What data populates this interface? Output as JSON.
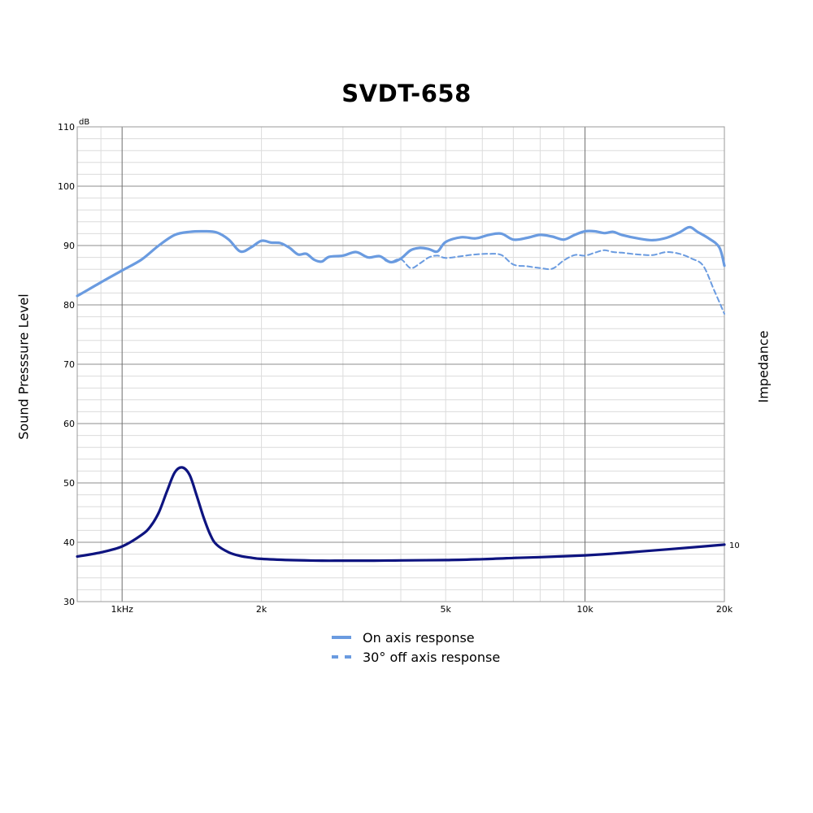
{
  "chart_data": {
    "type": "line",
    "title": "SVDT-658",
    "ylabel": "Sound Presssure Level",
    "ylabel_right": "Impedance",
    "yunit": "dB",
    "xscale": "log",
    "xlim": [
      800,
      20000
    ],
    "ylim": [
      30,
      110
    ],
    "yticks": [
      30,
      40,
      50,
      60,
      70,
      80,
      90,
      100,
      110
    ],
    "xticks": [
      {
        "value": 1000,
        "label": "1kHz"
      },
      {
        "value": 2000,
        "label": "2k"
      },
      {
        "value": 5000,
        "label": "5k"
      },
      {
        "value": 10000,
        "label": "10k"
      },
      {
        "value": 20000,
        "label": "20k"
      }
    ],
    "right_tick": {
      "y": 39.6,
      "label": "10"
    },
    "grid": true,
    "legend_position": "bottom",
    "series": [
      {
        "name": "On axis response",
        "style": "solid",
        "color": "#6a9be0",
        "x": [
          800,
          900,
          1000,
          1100,
          1200,
          1300,
          1400,
          1500,
          1600,
          1700,
          1800,
          1900,
          2000,
          2100,
          2200,
          2300,
          2400,
          2500,
          2600,
          2700,
          2800,
          3000,
          3200,
          3400,
          3600,
          3800,
          4000,
          4200,
          4400,
          4600,
          4800,
          5000,
          5400,
          5800,
          6200,
          6600,
          7000,
          7500,
          8000,
          8500,
          9000,
          9500,
          10000,
          10500,
          11000,
          11500,
          12000,
          13000,
          14000,
          15000,
          16000,
          16800,
          17500,
          18500,
          19500,
          20000
        ],
        "y": [
          81.5,
          83.8,
          85.8,
          87.6,
          90.0,
          91.8,
          92.3,
          92.4,
          92.2,
          91.0,
          89.0,
          89.7,
          90.8,
          90.5,
          90.4,
          89.6,
          88.5,
          88.6,
          87.6,
          87.3,
          88.1,
          88.3,
          88.9,
          88.0,
          88.2,
          87.2,
          87.8,
          89.2,
          89.6,
          89.4,
          89.0,
          90.6,
          91.4,
          91.2,
          91.8,
          92.0,
          91.0,
          91.3,
          91.8,
          91.5,
          91.0,
          91.8,
          92.4,
          92.4,
          92.1,
          92.3,
          91.8,
          91.2,
          90.9,
          91.3,
          92.2,
          93.1,
          92.3,
          91.2,
          89.7,
          86.6
        ]
      },
      {
        "name": "30° off axis response",
        "style": "dashed",
        "color": "#6a9be0",
        "x": [
          3700,
          3800,
          4000,
          4200,
          4400,
          4600,
          4800,
          5000,
          5400,
          5800,
          6200,
          6600,
          7000,
          7500,
          8000,
          8500,
          9000,
          9500,
          10000,
          10500,
          11000,
          11500,
          12000,
          13000,
          14000,
          15000,
          16000,
          17000,
          18000,
          19000,
          20000
        ],
        "y": [
          87.5,
          87.2,
          87.7,
          86.2,
          87.0,
          88.0,
          88.3,
          87.9,
          88.2,
          88.5,
          88.6,
          88.4,
          86.8,
          86.5,
          86.2,
          86.1,
          87.5,
          88.4,
          88.3,
          88.8,
          89.2,
          88.9,
          88.8,
          88.5,
          88.4,
          88.9,
          88.6,
          87.8,
          86.6,
          82.5,
          78.5
        ]
      },
      {
        "name": "Impedance",
        "style": "solid",
        "color": "#0e1480",
        "x": [
          800,
          900,
          1000,
          1100,
          1150,
          1200,
          1250,
          1300,
          1350,
          1400,
          1450,
          1500,
          1550,
          1600,
          1700,
          1800,
          1900,
          2000,
          2300,
          2700,
          3000,
          3500,
          4000,
          5000,
          6000,
          7000,
          8000,
          10000,
          12000,
          15000,
          18000,
          20000
        ],
        "y": [
          37.6,
          38.3,
          39.3,
          41.2,
          42.6,
          45.0,
          48.6,
          51.8,
          52.6,
          51.3,
          47.8,
          44.2,
          41.3,
          39.6,
          38.3,
          37.7,
          37.4,
          37.2,
          37.0,
          36.9,
          36.9,
          36.9,
          36.95,
          37.0,
          37.15,
          37.35,
          37.5,
          37.8,
          38.2,
          38.8,
          39.3,
          39.6
        ]
      }
    ]
  }
}
